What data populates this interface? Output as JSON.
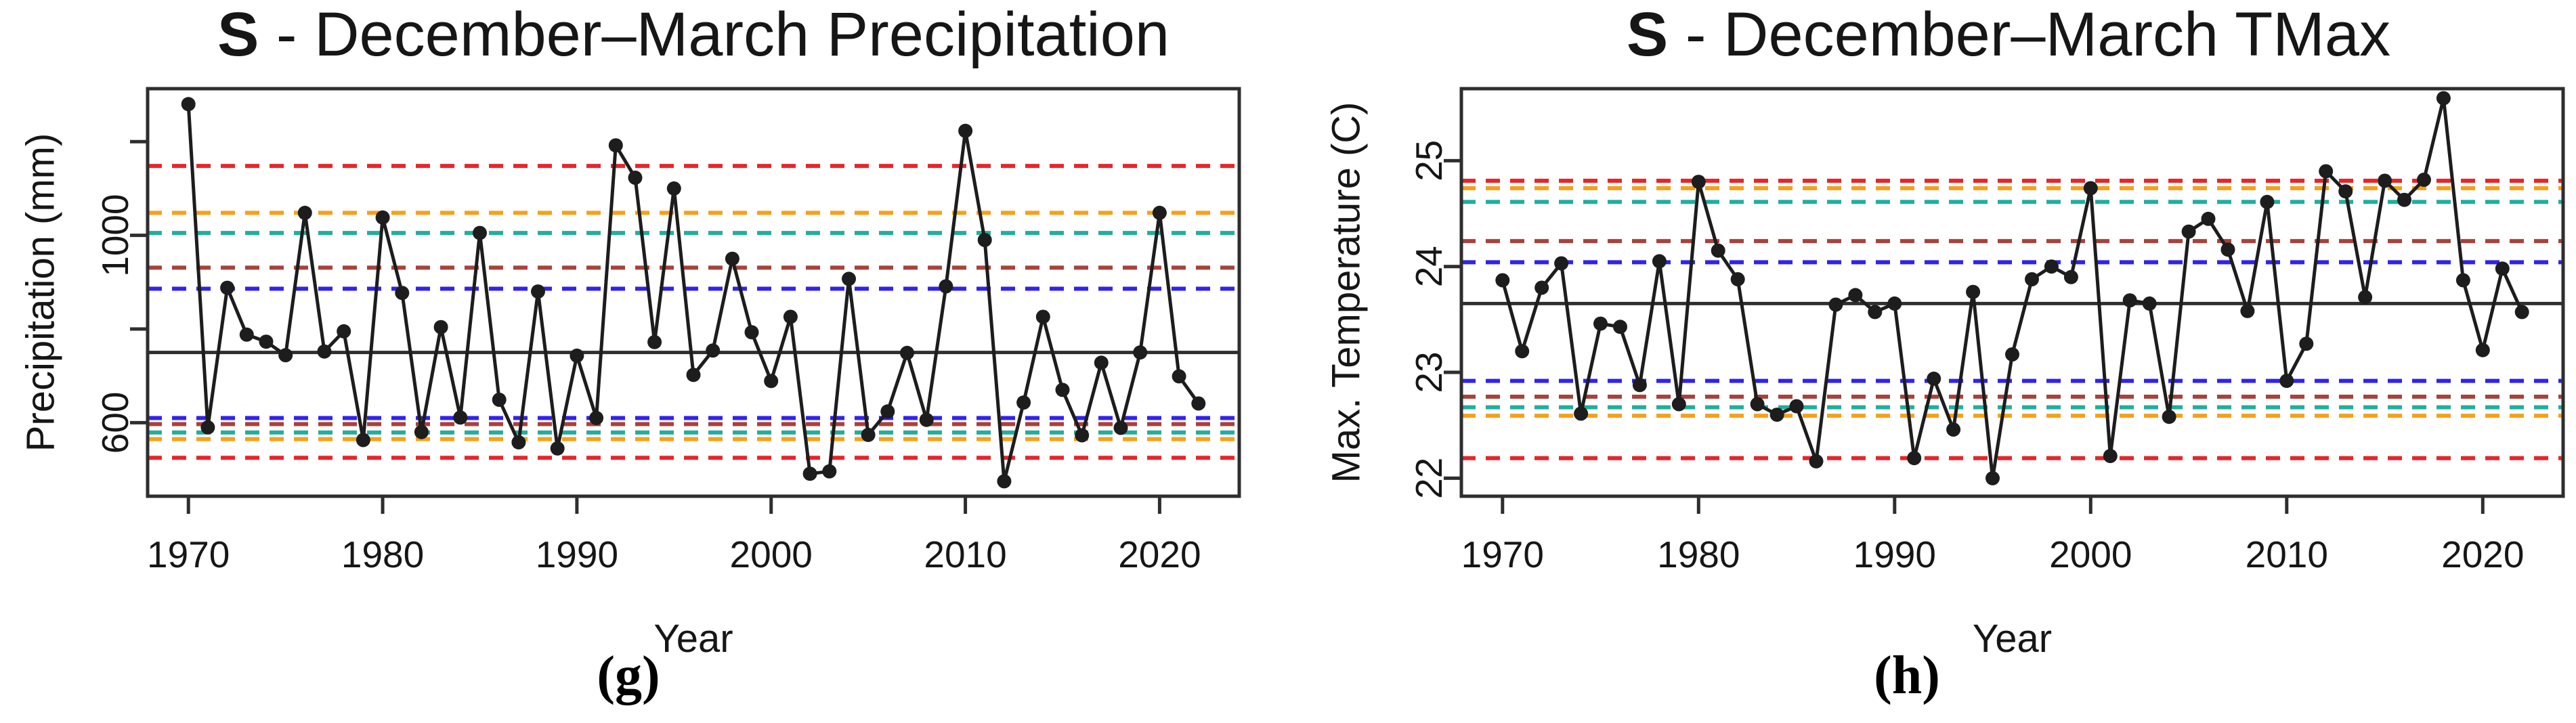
{
  "figure": {
    "description": "Two annual time-series plots with quantile threshold dashed lines and mean line",
    "colors": {
      "red": "#E8252A",
      "orange": "#F6A01A",
      "teal": "#1FAF9E",
      "darkred": "#A8423A",
      "blue": "#3022F0",
      "series_black": "#1D1D1D",
      "mean_gray": "#2F2F2F",
      "box_black": "#2E2E2E"
    }
  },
  "chart_data": [
    {
      "type": "line",
      "panel_id": "g",
      "title": "S - December–March Precipitation",
      "title_prefix": "S",
      "title_rest": " - December–March Precipitation",
      "caption": "(g)",
      "xlabel": "Year",
      "ylabel": "Precipitation (mm)",
      "xlim": [
        1967.9,
        2024.1
      ],
      "ylim": [
        443,
        1313
      ],
      "grid": false,
      "legend": "none",
      "x_ticks": [
        {
          "value": 1970,
          "label": "1970"
        },
        {
          "value": 1980,
          "label": "1980"
        },
        {
          "value": 1990,
          "label": "1990"
        },
        {
          "value": 2000,
          "label": "2000"
        },
        {
          "value": 2010,
          "label": "2010"
        },
        {
          "value": 2020,
          "label": "2020"
        }
      ],
      "y_ticks": [
        {
          "value": 600,
          "label": "600"
        },
        {
          "value": 800,
          "label": ""
        },
        {
          "value": 1000,
          "label": "1000"
        },
        {
          "value": 1200,
          "label": ""
        }
      ],
      "mean_line": 750,
      "quantile_lines": [
        {
          "color": "red",
          "value": 1148
        },
        {
          "color": "orange",
          "value": 1048
        },
        {
          "color": "teal",
          "value": 1005
        },
        {
          "color": "darkred",
          "value": 931
        },
        {
          "color": "blue",
          "value": 886
        },
        {
          "color": "blue",
          "value": 610
        },
        {
          "color": "darkred",
          "value": 597
        },
        {
          "color": "teal",
          "value": 579
        },
        {
          "color": "orange",
          "value": 565
        },
        {
          "color": "red",
          "value": 525
        }
      ],
      "years": [
        1970,
        1971,
        1972,
        1973,
        1974,
        1975,
        1976,
        1977,
        1978,
        1979,
        1980,
        1981,
        1982,
        1983,
        1984,
        1985,
        1986,
        1987,
        1988,
        1989,
        1990,
        1991,
        1992,
        1993,
        1994,
        1995,
        1996,
        1997,
        1998,
        1999,
        2000,
        2001,
        2002,
        2003,
        2004,
        2005,
        2006,
        2007,
        2008,
        2009,
        2010,
        2011,
        2012,
        2013,
        2014,
        2015,
        2016,
        2017,
        2018,
        2019,
        2020,
        2021,
        2022
      ],
      "values": [
        1280,
        590,
        888,
        788,
        773,
        744,
        1048,
        752,
        795,
        563,
        1038,
        877,
        580,
        804,
        611,
        1005,
        649,
        558,
        880,
        545,
        743,
        610,
        1192,
        1123,
        772,
        1100,
        702,
        754,
        950,
        793,
        689,
        826,
        491,
        496,
        907,
        574,
        624,
        749,
        606,
        891,
        1223,
        990,
        475,
        643,
        826,
        670,
        573,
        728,
        589,
        750,
        1048,
        699,
        641
      ]
    },
    {
      "type": "line",
      "panel_id": "h",
      "title": "S - December–March TMax",
      "title_prefix": "S",
      "title_rest": " - December–March TMax",
      "caption": "(h)",
      "xlabel": "Year",
      "ylabel": "Max. Temperature (C)",
      "xlim": [
        1967.9,
        2024.1
      ],
      "ylim": [
        21.83,
        25.68
      ],
      "grid": false,
      "legend": "none",
      "x_ticks": [
        {
          "value": 1970,
          "label": "1970"
        },
        {
          "value": 1980,
          "label": "1980"
        },
        {
          "value": 1990,
          "label": "1990"
        },
        {
          "value": 2000,
          "label": "2000"
        },
        {
          "value": 2010,
          "label": "2010"
        },
        {
          "value": 2020,
          "label": "2020"
        }
      ],
      "y_ticks": [
        {
          "value": 22,
          "label": "22"
        },
        {
          "value": 23,
          "label": "23"
        },
        {
          "value": 24,
          "label": "24"
        },
        {
          "value": 25,
          "label": "25"
        }
      ],
      "mean_line": 23.65,
      "quantile_lines": [
        {
          "color": "red",
          "value": 24.81
        },
        {
          "color": "orange",
          "value": 24.74
        },
        {
          "color": "teal",
          "value": 24.61
        },
        {
          "color": "darkred",
          "value": 24.24
        },
        {
          "color": "blue",
          "value": 24.04
        },
        {
          "color": "blue",
          "value": 22.92
        },
        {
          "color": "darkred",
          "value": 22.77
        },
        {
          "color": "teal",
          "value": 22.67
        },
        {
          "color": "orange",
          "value": 22.59
        },
        {
          "color": "red",
          "value": 22.19
        }
      ],
      "years": [
        1970,
        1971,
        1972,
        1973,
        1974,
        1975,
        1976,
        1977,
        1978,
        1979,
        1980,
        1981,
        1982,
        1983,
        1984,
        1985,
        1986,
        1987,
        1988,
        1989,
        1990,
        1991,
        1992,
        1993,
        1994,
        1995,
        1996,
        1997,
        1998,
        1999,
        2000,
        2001,
        2002,
        2003,
        2004,
        2005,
        2006,
        2007,
        2008,
        2009,
        2010,
        2011,
        2012,
        2013,
        2014,
        2015,
        2016,
        2017,
        2018,
        2019,
        2020,
        2021,
        2022
      ],
      "values": [
        23.87,
        23.2,
        23.8,
        24.03,
        22.61,
        23.46,
        23.43,
        22.88,
        24.05,
        22.7,
        24.8,
        24.15,
        23.88,
        22.7,
        22.6,
        22.68,
        22.16,
        23.64,
        23.73,
        23.57,
        23.65,
        22.19,
        22.94,
        22.46,
        23.76,
        22.0,
        23.17,
        23.88,
        24.0,
        23.9,
        24.74,
        22.21,
        23.68,
        23.65,
        22.58,
        24.33,
        24.45,
        24.16,
        23.58,
        24.61,
        22.92,
        23.27,
        24.9,
        24.71,
        23.71,
        24.81,
        24.63,
        24.82,
        25.59,
        23.87,
        23.21,
        23.98,
        23.57
      ]
    }
  ]
}
